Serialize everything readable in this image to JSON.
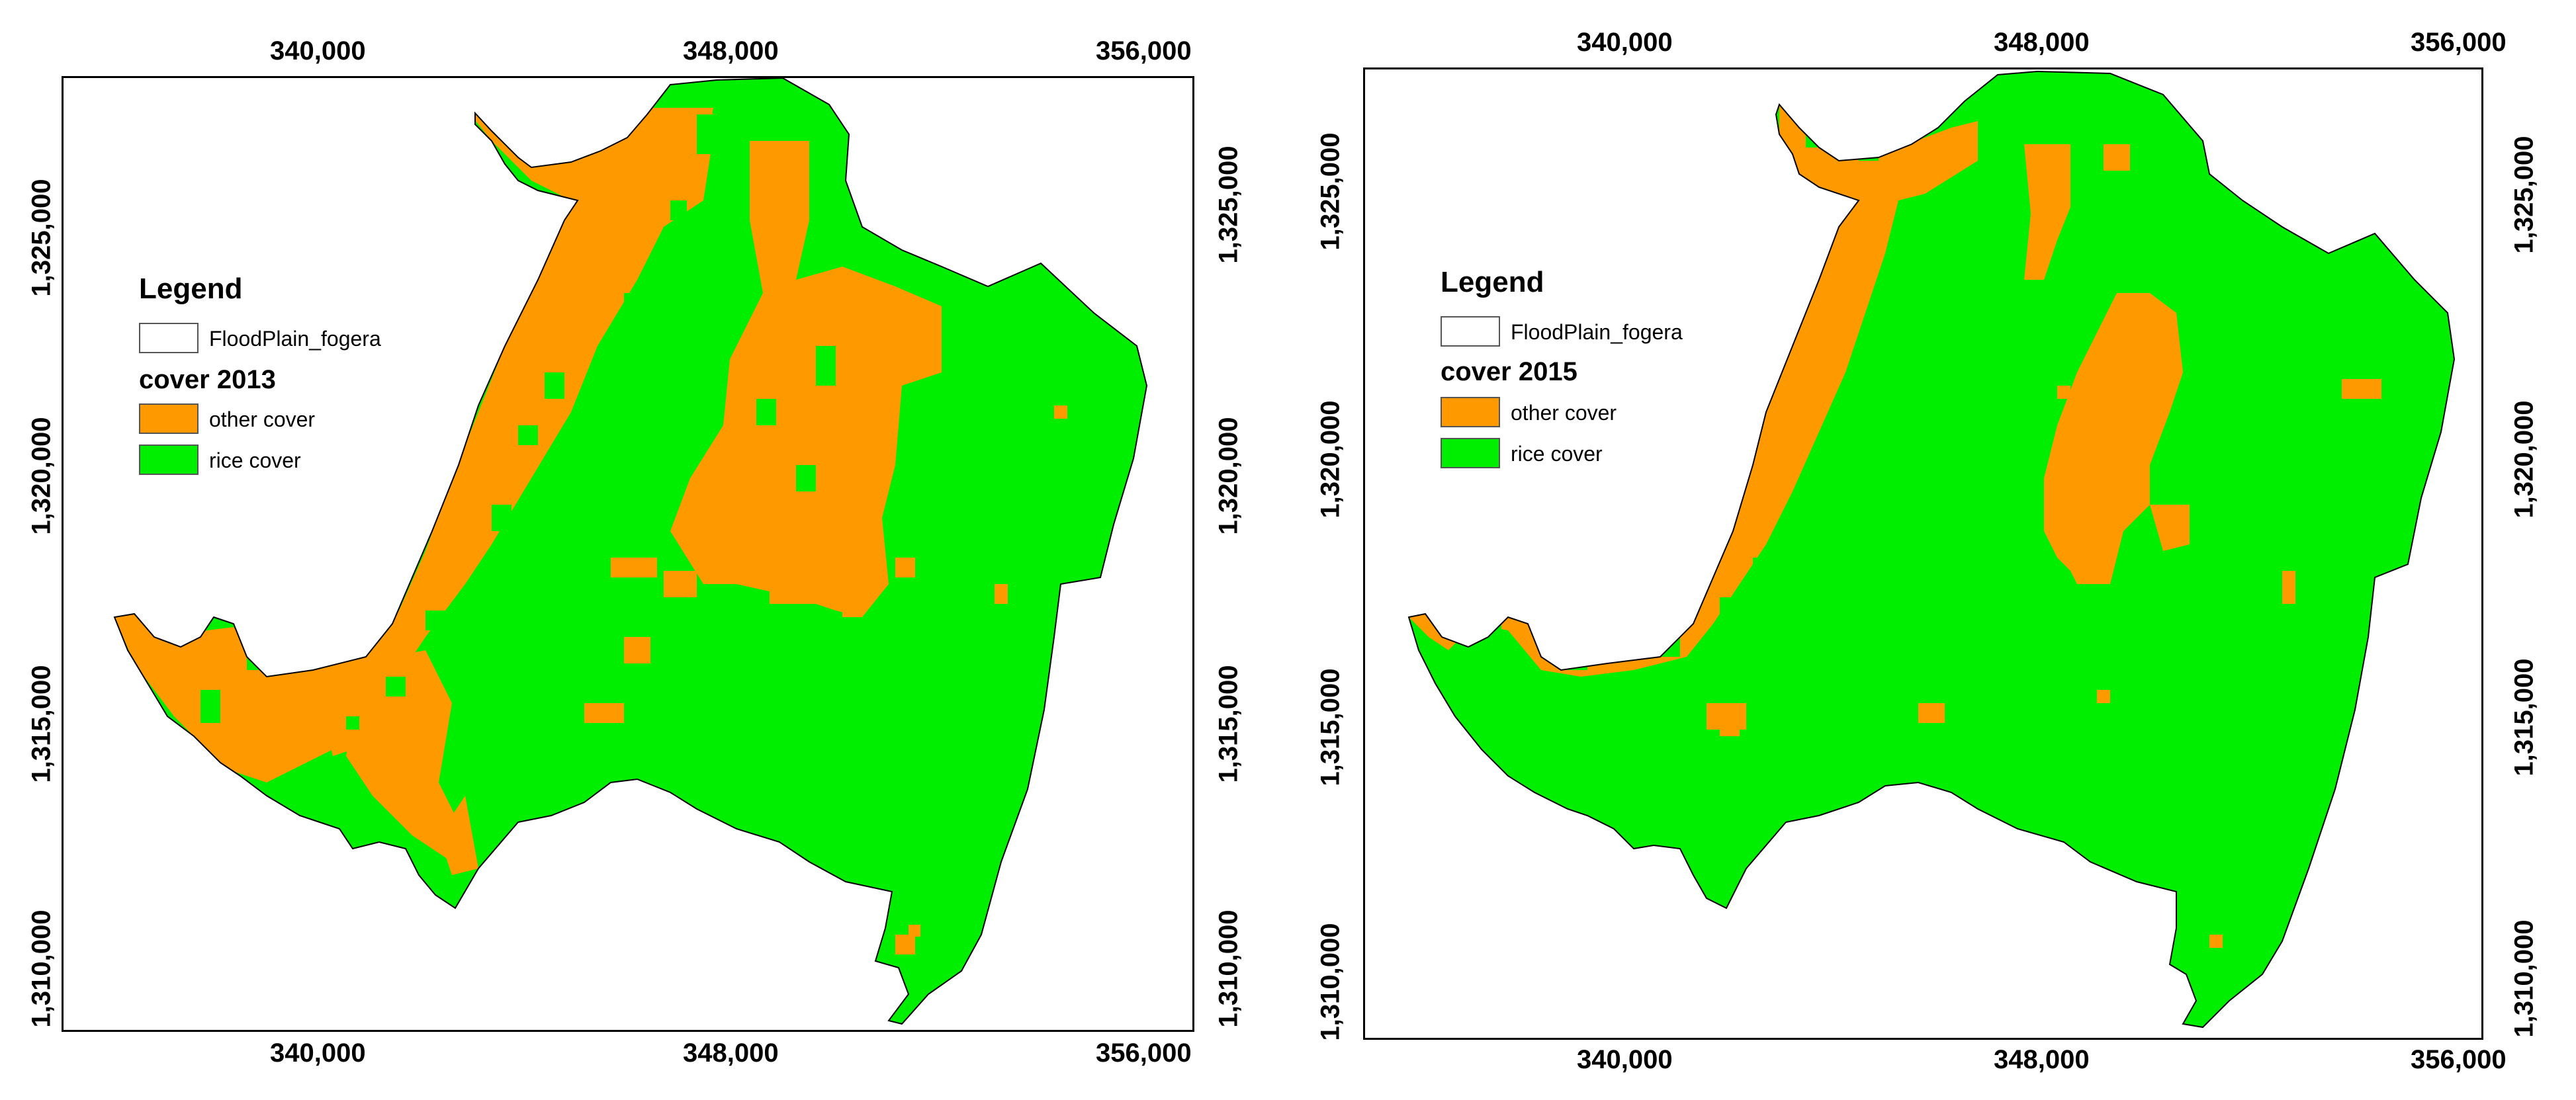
{
  "colors": {
    "rice": "#00ee00",
    "other": "#ff9900",
    "outline": "#000000",
    "floodplain_fill": "#ffffff"
  },
  "maps": [
    {
      "legend": {
        "title": "Legend",
        "floodplain_label": "FloodPlain_fogera",
        "cover_title": "cover 2013",
        "items": [
          {
            "label": "other cover",
            "color": "#ff9900"
          },
          {
            "label": "rice cover",
            "color": "#00ee00"
          }
        ]
      },
      "x_ticks": [
        "340,000",
        "348,000",
        "356,000"
      ],
      "y_ticks": [
        "1,325,000",
        "1,320,000",
        "1,315,000",
        "1,310,000"
      ]
    },
    {
      "legend": {
        "title": "Legend",
        "floodplain_label": "FloodPlain_fogera",
        "cover_title": "cover 2015",
        "items": [
          {
            "label": "other cover",
            "color": "#ff9900"
          },
          {
            "label": "rice cover",
            "color": "#00ee00"
          }
        ]
      },
      "x_ticks": [
        "340,000",
        "348,000",
        "356,000"
      ],
      "y_ticks": [
        "1,325,000",
        "1,320,000",
        "1,315,000",
        "1,310,000"
      ]
    }
  ]
}
